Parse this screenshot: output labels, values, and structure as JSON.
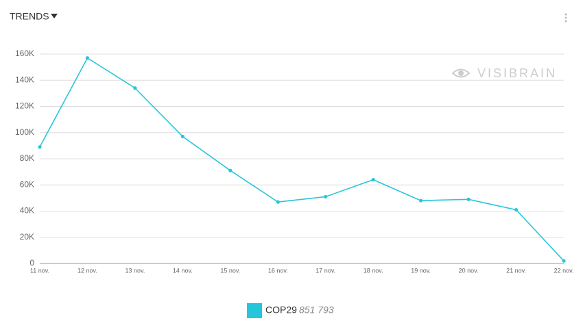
{
  "chart_data": {
    "type": "line",
    "title": "TRENDS",
    "watermark": "VISIBRAIN",
    "categories": [
      "11 nov.",
      "12 nov.",
      "13 nov.",
      "14 nov.",
      "15 nov.",
      "16 nov.",
      "17 nov.",
      "18 nov.",
      "19 nov.",
      "20 nov.",
      "21 nov.",
      "22 nov."
    ],
    "series": [
      {
        "name": "COP29",
        "color": "#26c6da",
        "total_label": "851 793",
        "values": [
          89000,
          157000,
          134000,
          97000,
          71000,
          47000,
          51000,
          64000,
          48000,
          49000,
          41000,
          2000
        ]
      }
    ],
    "ylim": [
      0,
      160000
    ],
    "yticks": [
      0,
      {
        "value": 20000,
        "label": "20K"
      },
      {
        "value": 40000,
        "label": "40K"
      },
      {
        "value": 60000,
        "label": "60K"
      },
      {
        "value": 80000,
        "label": "80K"
      },
      {
        "value": 100000,
        "label": "100K"
      },
      {
        "value": 120000,
        "label": "120K"
      },
      {
        "value": 140000,
        "label": "140K"
      },
      {
        "value": 160000,
        "label": "160K"
      }
    ],
    "grid": true
  }
}
